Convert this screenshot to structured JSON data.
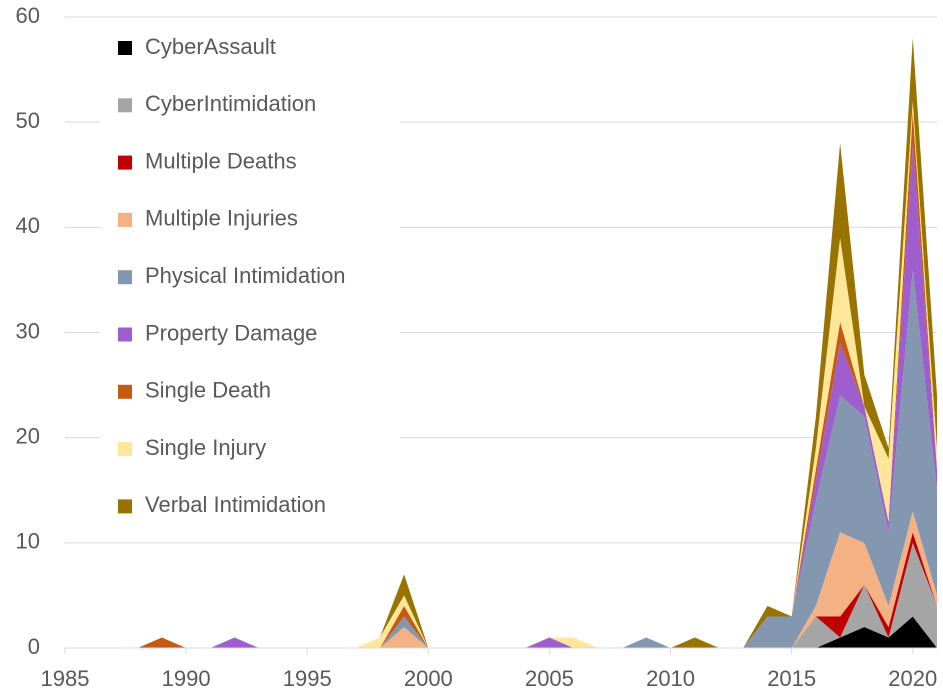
{
  "chart_data": {
    "type": "stacked_area",
    "x": [
      1985,
      1986,
      1987,
      1988,
      1989,
      1990,
      1991,
      1992,
      1993,
      1994,
      1995,
      1996,
      1997,
      1998,
      1999,
      2000,
      2001,
      2002,
      2003,
      2004,
      2005,
      2006,
      2007,
      2008,
      2009,
      2010,
      2011,
      2012,
      2013,
      2014,
      2015,
      2016,
      2017,
      2018,
      2019,
      2020,
      2021
    ],
    "series": [
      {
        "name": "CyberAssault",
        "color": "#000000",
        "values": [
          0,
          0,
          0,
          0,
          0,
          0,
          0,
          0,
          0,
          0,
          0,
          0,
          0,
          0,
          0,
          0,
          0,
          0,
          0,
          0,
          0,
          0,
          0,
          0,
          0,
          0,
          0,
          0,
          0,
          0,
          0,
          0,
          1,
          2,
          1,
          3,
          0
        ]
      },
      {
        "name": "CyberIntimidation",
        "color": "#a5a5a5",
        "values": [
          0,
          0,
          0,
          0,
          0,
          0,
          0,
          0,
          0,
          0,
          0,
          0,
          0,
          0,
          0,
          0,
          0,
          0,
          0,
          0,
          0,
          0,
          0,
          0,
          0,
          0,
          0,
          0,
          0,
          0,
          0,
          3,
          0,
          4,
          0,
          7,
          4
        ]
      },
      {
        "name": "Multiple Deaths",
        "color": "#c00000",
        "values": [
          0,
          0,
          0,
          0,
          0,
          0,
          0,
          0,
          0,
          0,
          0,
          0,
          0,
          0,
          0,
          0,
          0,
          0,
          0,
          0,
          0,
          0,
          0,
          0,
          0,
          0,
          0,
          0,
          0,
          0,
          0,
          0,
          2,
          0,
          1,
          1,
          0
        ]
      },
      {
        "name": "Multiple Injuries",
        "color": "#f4b183",
        "values": [
          0,
          0,
          0,
          0,
          0,
          0,
          0,
          0,
          0,
          0,
          0,
          0,
          0,
          0,
          2,
          0,
          0,
          0,
          0,
          0,
          0,
          0,
          0,
          0,
          0,
          0,
          0,
          0,
          0,
          0,
          0,
          1,
          8,
          4,
          2,
          2,
          1
        ]
      },
      {
        "name": "Physical Intimidation",
        "color": "#8497b0",
        "values": [
          0,
          0,
          0,
          0,
          0,
          0,
          0,
          0,
          0,
          0,
          0,
          0,
          0,
          0,
          1,
          0,
          0,
          0,
          0,
          0,
          0,
          0,
          0,
          0,
          1,
          0,
          0,
          0,
          0,
          3,
          3,
          10,
          13,
          12,
          7,
          23,
          10
        ]
      },
      {
        "name": "Property Damage",
        "color": "#9e5ece",
        "values": [
          0,
          0,
          0,
          0,
          0,
          0,
          0,
          1,
          0,
          0,
          0,
          0,
          0,
          0,
          0,
          0,
          0,
          0,
          0,
          0,
          1,
          0,
          0,
          0,
          0,
          0,
          0,
          0,
          0,
          0,
          0,
          2,
          5,
          1,
          1,
          12,
          2
        ]
      },
      {
        "name": "Single Death",
        "color": "#c55a11",
        "values": [
          0,
          0,
          0,
          0,
          1,
          0,
          0,
          0,
          0,
          0,
          0,
          0,
          0,
          0,
          1,
          0,
          0,
          0,
          0,
          0,
          0,
          0,
          0,
          0,
          0,
          0,
          0,
          0,
          0,
          0,
          0,
          1,
          2,
          0,
          0,
          3,
          0
        ]
      },
      {
        "name": "Single Injury",
        "color": "#ffe699",
        "values": [
          0,
          0,
          0,
          0,
          0,
          0,
          0,
          0,
          0,
          0,
          0,
          0,
          0,
          1,
          1,
          0,
          0,
          0,
          0,
          0,
          0,
          1,
          0,
          0,
          0,
          0,
          0,
          0,
          0,
          0,
          0,
          2,
          8,
          0,
          6,
          1,
          2
        ]
      },
      {
        "name": "Verbal Intimidation",
        "color": "#997300",
        "values": [
          0,
          0,
          0,
          0,
          0,
          0,
          0,
          0,
          0,
          0,
          0,
          0,
          0,
          0,
          2,
          0,
          0,
          0,
          0,
          0,
          0,
          0,
          0,
          0,
          0,
          0,
          1,
          0,
          0,
          1,
          0,
          3,
          9,
          3,
          1,
          6,
          5
        ]
      }
    ],
    "xlim": [
      1985,
      2021
    ],
    "xticks": [
      1985,
      1990,
      1995,
      2000,
      2005,
      2010,
      2015,
      2020
    ],
    "ylim": [
      0,
      60
    ],
    "yticks": [
      0,
      10,
      20,
      30,
      40,
      50,
      60
    ],
    "grid": true,
    "legend": "upper left"
  }
}
